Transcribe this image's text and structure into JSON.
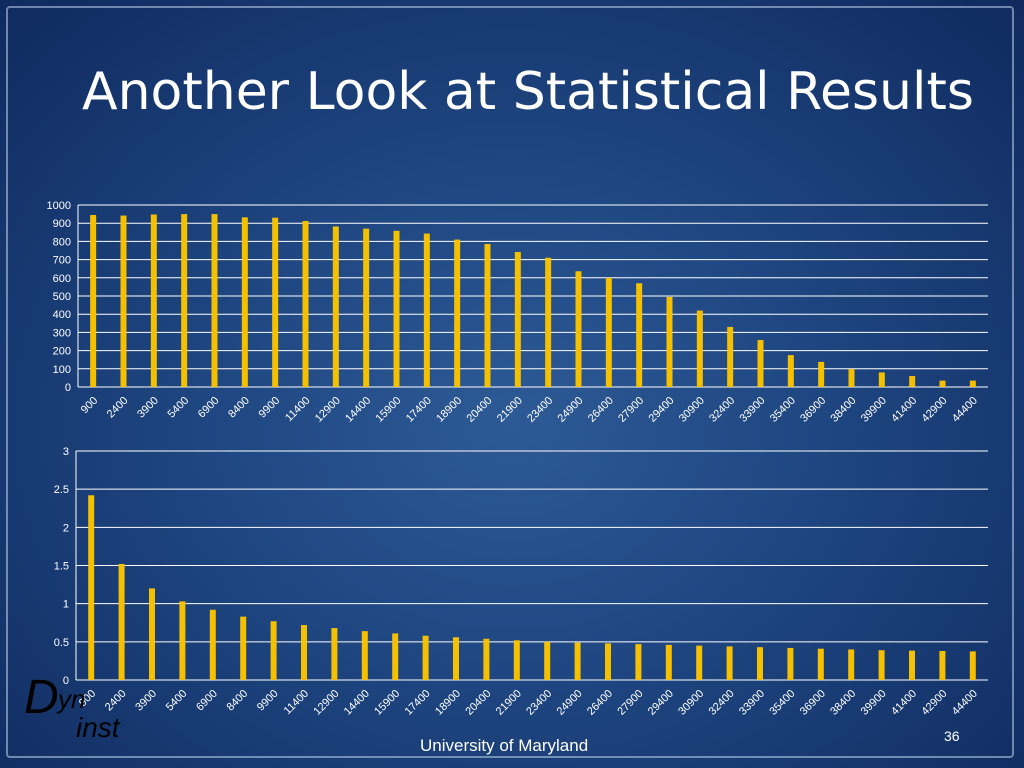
{
  "slide": {
    "title": "Another Look at Statistical Results",
    "footer": "University of Maryland",
    "page_number": "36",
    "logo": {
      "d": "D",
      "yn": "yn",
      "inst": "inst"
    }
  },
  "colors": {
    "bar": "#f5c000",
    "grid": "#ffffff",
    "axis_text": "#ffffff"
  },
  "chart_data": [
    {
      "type": "bar",
      "categories": [
        "900",
        "2400",
        "3900",
        "5400",
        "6900",
        "8400",
        "9900",
        "11400",
        "12900",
        "14400",
        "15900",
        "17400",
        "18900",
        "20400",
        "21900",
        "23400",
        "24900",
        "26400",
        "27900",
        "29400",
        "30900",
        "32400",
        "33900",
        "35400",
        "36900",
        "38400",
        "39900",
        "41400",
        "42900",
        "44400"
      ],
      "values": [
        945,
        942,
        948,
        950,
        950,
        932,
        930,
        912,
        882,
        870,
        858,
        843,
        810,
        786,
        742,
        710,
        636,
        600,
        570,
        495,
        420,
        330,
        258,
        175,
        138,
        98,
        80,
        60,
        35,
        35
      ],
      "ylim": [
        0,
        1000
      ],
      "yticks": [
        0,
        100,
        200,
        300,
        400,
        500,
        600,
        700,
        800,
        900,
        1000
      ],
      "grid": true
    },
    {
      "type": "bar",
      "categories": [
        "900",
        "2400",
        "3900",
        "5400",
        "6900",
        "8400",
        "9900",
        "11400",
        "12900",
        "14400",
        "15900",
        "17400",
        "18900",
        "20400",
        "21900",
        "23400",
        "24900",
        "26400",
        "27900",
        "29400",
        "30900",
        "32400",
        "33900",
        "35400",
        "36900",
        "38400",
        "39900",
        "41400",
        "42900",
        "44400"
      ],
      "values": [
        2.42,
        1.52,
        1.2,
        1.03,
        0.92,
        0.83,
        0.77,
        0.72,
        0.68,
        0.64,
        0.61,
        0.58,
        0.56,
        0.54,
        0.52,
        0.5,
        0.49,
        0.48,
        0.47,
        0.46,
        0.45,
        0.44,
        0.43,
        0.42,
        0.41,
        0.4,
        0.39,
        0.385,
        0.38,
        0.375
      ],
      "ylim": [
        0,
        3
      ],
      "yticks": [
        0,
        0.5,
        1,
        1.5,
        2,
        2.5,
        3
      ],
      "grid": true
    }
  ]
}
